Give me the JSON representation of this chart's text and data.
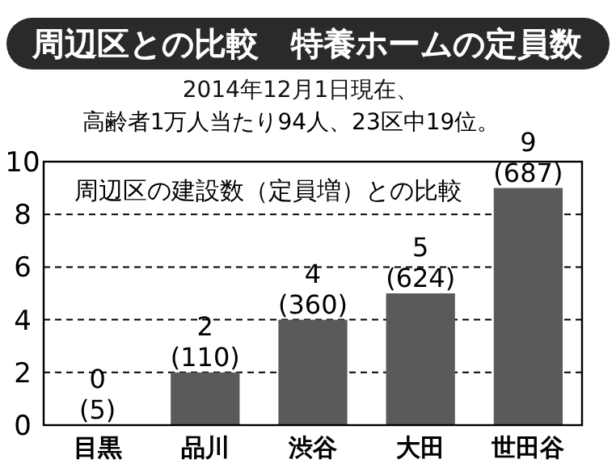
{
  "chart_data": {
    "type": "bar",
    "title": "周辺区との比較　特養ホームの定員数",
    "subtitle": "2014年12月1日現在、",
    "annotations": [
      "高齢者1万人当たり94人、23区中19位。",
      "周辺区の建設数（定員増）との比較"
    ],
    "categories": [
      "目黒",
      "品川",
      "渋谷",
      "大田",
      "世田谷"
    ],
    "values": [
      0,
      2,
      4,
      5,
      9
    ],
    "value_labels": [
      "0\n(5)",
      "2\n(110)",
      "4\n(360)",
      "5\n(624)",
      "9\n(687)"
    ],
    "color": "#5a5a5a",
    "ylim": [
      0,
      10
    ],
    "yticks": [
      0,
      2,
      4,
      6,
      8,
      10
    ],
    "grid": "y"
  }
}
